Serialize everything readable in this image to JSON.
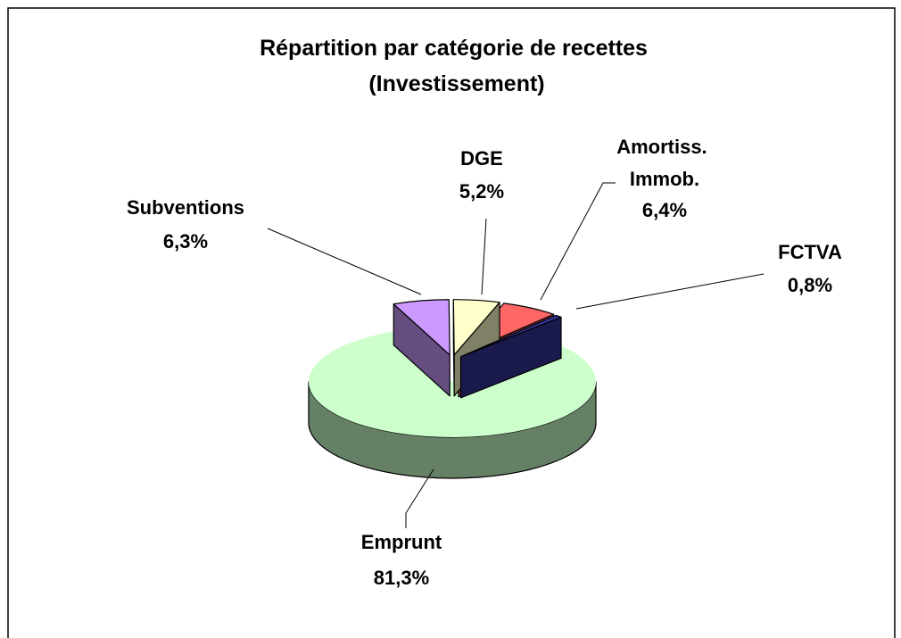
{
  "chart_data": {
    "type": "pie3d",
    "title": "Répartition par catégorie de recettes (Investissement)",
    "categories": [
      "Subventions",
      "DGE",
      "Amortiss. Immob.",
      "FCTVA",
      "Emprunt"
    ],
    "values": [
      6.3,
      5.2,
      6.4,
      0.8,
      81.3
    ],
    "value_labels": [
      "6,3%",
      "5,2%",
      "6,4%",
      "0,8%",
      "81,3%"
    ],
    "colors": [
      "#cc99ff",
      "#ffffcc",
      "#ff6666",
      "#333399",
      "#ccffcc"
    ]
  }
}
